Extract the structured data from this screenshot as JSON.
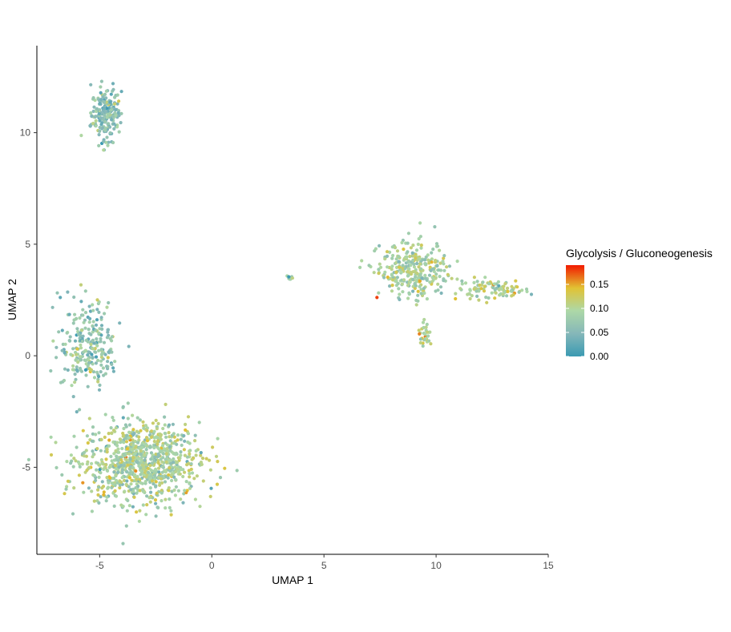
{
  "chart_data": {
    "type": "scatter",
    "title": "",
    "xlabel": "UMAP 1",
    "ylabel": "UMAP 2",
    "xlim": [
      -7.8,
      15
    ],
    "ylim": [
      -8.9,
      13.9
    ],
    "x_ticks": [
      -5,
      0,
      5,
      10,
      15
    ],
    "y_ticks": [
      -5,
      0,
      5,
      10
    ],
    "x_tick_labels": [
      "-5",
      "0",
      "5",
      "10",
      "15"
    ],
    "y_tick_labels": [
      "-5",
      "0",
      "5",
      "10"
    ],
    "grid": false,
    "legend": {
      "title": "Glycolysis / Gluconeogenesis",
      "placement": "right",
      "tick_values": [
        0.0,
        0.05,
        0.1,
        0.15
      ],
      "tick_labels": [
        "0.00",
        "0.05",
        "0.10",
        "0.15"
      ],
      "range": [
        0.0,
        0.19
      ]
    },
    "color_scale": {
      "low": "#3a9ab2",
      "mid_low": "#85b7b9",
      "mid": "#add8a7",
      "mid_high": "#e1c233",
      "high": "#f21a00"
    },
    "clusters": [
      {
        "center": [
          -4.7,
          10.8
        ],
        "spread": [
          0.55,
          1.0
        ],
        "n": 200,
        "value_mean": 0.06
      },
      {
        "center": [
          -3.2,
          -4.8
        ],
        "spread": [
          2.2,
          1.5
        ],
        "n": 900,
        "value_mean": 0.09
      },
      {
        "center": [
          -5.5,
          0.5
        ],
        "spread": [
          1.1,
          1.8
        ],
        "n": 250,
        "value_mean": 0.07
      },
      {
        "center": [
          9.0,
          3.8
        ],
        "spread": [
          1.3,
          1.0
        ],
        "n": 300,
        "value_mean": 0.09
      },
      {
        "center": [
          12.5,
          3.0
        ],
        "spread": [
          1.2,
          0.35
        ],
        "n": 100,
        "value_mean": 0.1
      },
      {
        "center": [
          9.5,
          1.0
        ],
        "spread": [
          0.25,
          0.5
        ],
        "n": 30,
        "value_mean": 0.1
      },
      {
        "center": [
          3.5,
          3.5
        ],
        "spread": [
          0.1,
          0.1
        ],
        "n": 8,
        "value_mean": 0.08
      }
    ]
  }
}
